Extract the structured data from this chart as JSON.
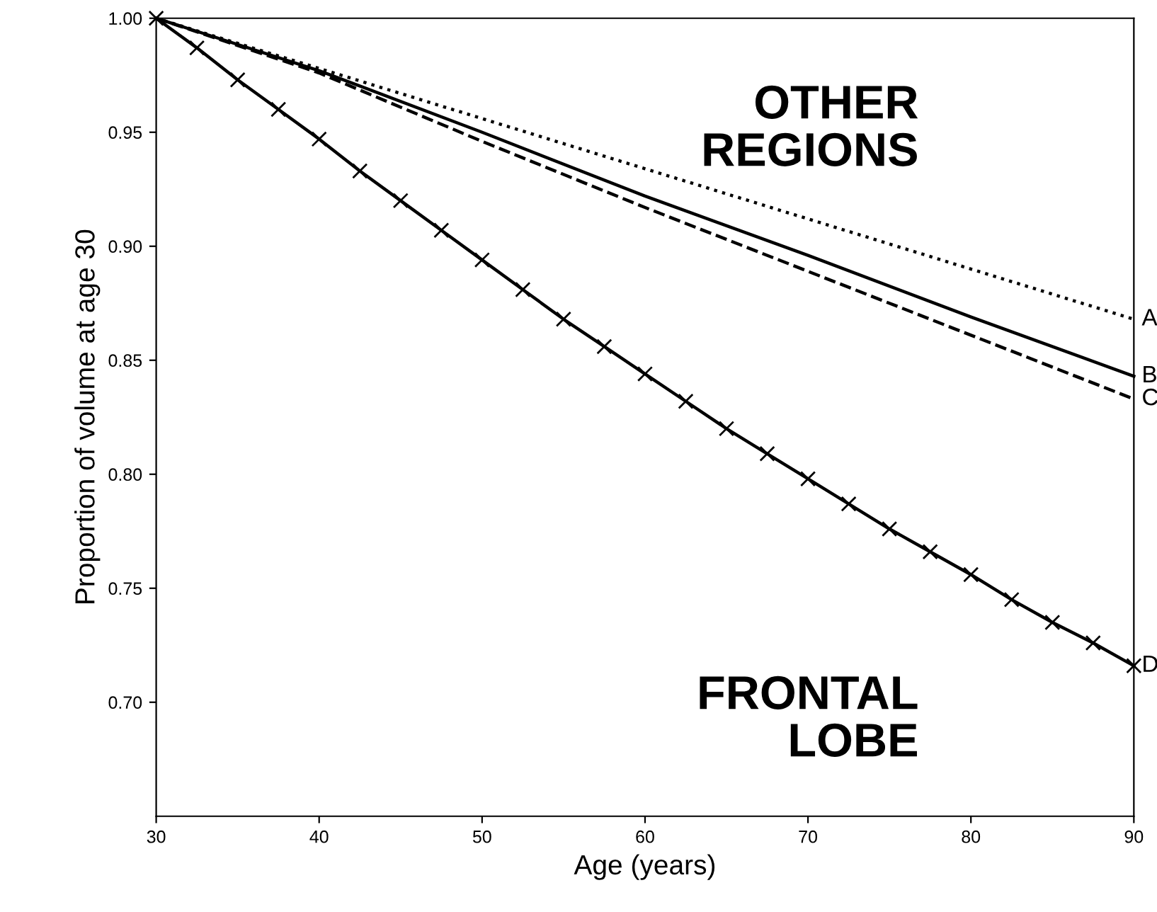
{
  "chart_data": {
    "type": "line",
    "xlabel": "Age (years)",
    "ylabel": "Proportion of volume at age 30",
    "xlim": [
      30,
      90
    ],
    "ylim": [
      0.65,
      1.0
    ],
    "xticks": [
      30,
      40,
      50,
      60,
      70,
      80,
      90
    ],
    "yticks": [
      {
        "value": 0.7,
        "label": "0.70"
      },
      {
        "value": 0.75,
        "label": "0.75"
      },
      {
        "value": 0.8,
        "label": "0.80"
      },
      {
        "value": 0.85,
        "label": "0.85"
      },
      {
        "value": 0.9,
        "label": "0.90"
      },
      {
        "value": 0.95,
        "label": "0.95"
      },
      {
        "value": 1.0,
        "label": "1.00"
      }
    ],
    "grid": false,
    "legend": false,
    "series": [
      {
        "name": "A",
        "color": "#000000",
        "line_style": "dotted",
        "marker": "none",
        "x": [
          30,
          60,
          90
        ],
        "values": [
          1.0,
          0.934,
          0.868
        ]
      },
      {
        "name": "B",
        "color": "#000000",
        "line_style": "solid",
        "marker": "none",
        "x": [
          30,
          40,
          50,
          60,
          70,
          80,
          90
        ],
        "values": [
          1.0,
          0.977,
          0.95,
          0.922,
          0.896,
          0.869,
          0.843
        ]
      },
      {
        "name": "C",
        "color": "#000000",
        "line_style": "dashed",
        "marker": "none",
        "x": [
          30,
          40,
          50,
          60,
          70,
          80,
          90
        ],
        "values": [
          1.0,
          0.976,
          0.946,
          0.917,
          0.889,
          0.861,
          0.833
        ]
      },
      {
        "name": "D",
        "color": "#000000",
        "line_style": "solid",
        "marker": "cross",
        "x": [
          30,
          32.5,
          35,
          37.5,
          40,
          42.5,
          45,
          47.5,
          50,
          52.5,
          55,
          57.5,
          60,
          62.5,
          65,
          67.5,
          70,
          72.5,
          75,
          77.5,
          80,
          82.5,
          85,
          87.5,
          90
        ],
        "values": [
          1.0,
          0.987,
          0.973,
          0.96,
          0.947,
          0.933,
          0.92,
          0.907,
          0.894,
          0.881,
          0.868,
          0.856,
          0.844,
          0.832,
          0.82,
          0.809,
          0.798,
          0.787,
          0.776,
          0.766,
          0.756,
          0.745,
          0.735,
          0.726,
          0.716
        ]
      }
    ],
    "annotations": [
      "OTHER REGIONS",
      "FRONTAL LOBE"
    ]
  }
}
